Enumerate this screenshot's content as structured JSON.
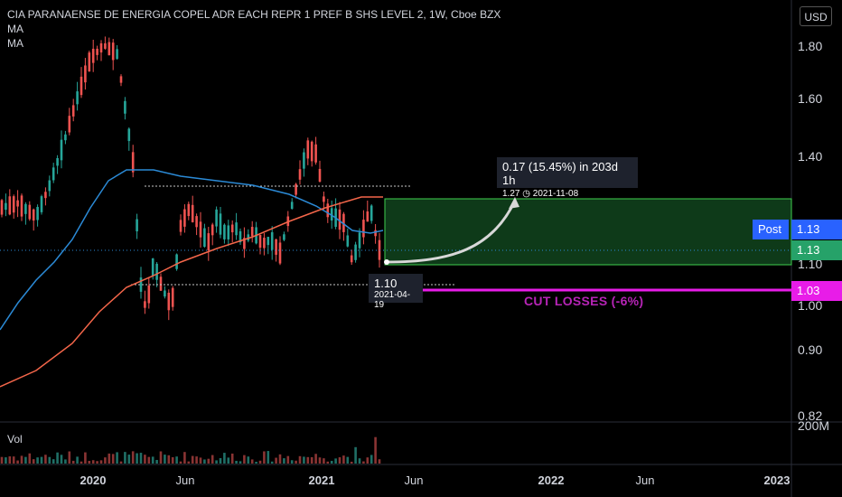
{
  "legend": {
    "title": "CIA PARANAENSE DE ENERGIA COPEL ADR EACH REPR 1 PREF B SHS LEVEL 2, 1W, Cboe BZX",
    "ma1": "MA",
    "ma2": "MA"
  },
  "currency": "USD",
  "price_axis": [
    "1.80",
    "1.60",
    "1.40",
    "1.10",
    "1.00",
    "0.90",
    "0.82"
  ],
  "volume_axis": "200M",
  "time_axis": {
    "bold": [
      "2020",
      "2021",
      "2022",
      "2023"
    ],
    "normal": [
      "Jun",
      "Jun",
      "Jun",
      "Jun"
    ]
  },
  "volume": {
    "label": "Vol"
  },
  "tags": {
    "post_label": "Post",
    "post_value": "1.13",
    "last_value": "1.13",
    "stop_value": "1.03"
  },
  "projection": {
    "change": "0.17 (15.45%) in 203d 1h",
    "target": "1.27",
    "target_date": "2021-11-08",
    "entry": "1.10",
    "entry_date": "2021-04-19"
  },
  "stop_label": "CUT LOSSES (-6%)",
  "colors": {
    "up": "#26a69a",
    "down": "#ef5350",
    "ma_blue": "#2b8ad6",
    "ma_red": "#f4664a",
    "target_zone": "#0e3a19",
    "stop": "#e81ce8",
    "post_tag": "#2962ff"
  }
}
